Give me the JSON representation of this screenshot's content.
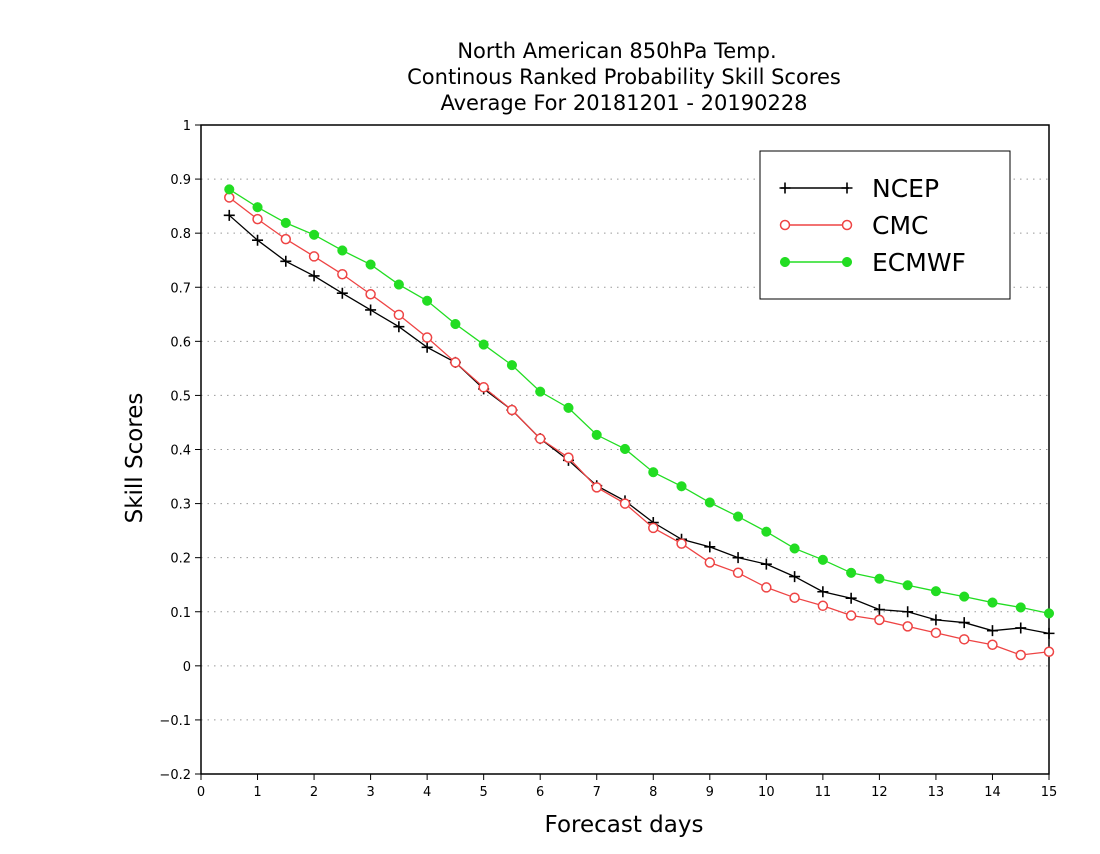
{
  "chart_data": {
    "type": "line",
    "title_lines": [
      "North American 850hPa Temp.",
      "Continous Ranked Probability Skill Scores",
      "Average For 20181201 - 20190228"
    ],
    "xlabel": "Forecast days",
    "ylabel": "Skill Scores",
    "xlim": [
      0,
      15
    ],
    "ylim": [
      -0.2,
      1
    ],
    "x_ticks": [
      0,
      1,
      2,
      3,
      4,
      5,
      6,
      7,
      8,
      9,
      10,
      11,
      12,
      13,
      14,
      15
    ],
    "x_tick_labels": [
      "0",
      "1",
      "2",
      "3",
      "4",
      "5",
      "6",
      "7",
      "8",
      "9",
      "10",
      "11",
      "12",
      "13",
      "14",
      "15"
    ],
    "y_ticks": [
      -0.2,
      -0.1,
      0,
      0.1,
      0.2,
      0.3,
      0.4,
      0.5,
      0.6,
      0.7,
      0.8,
      0.9,
      1
    ],
    "y_tick_labels": [
      "−0.2",
      "−0.1",
      "0",
      "0.1",
      "0.2",
      "0.3",
      "0.4",
      "0.5",
      "0.6",
      "0.7",
      "0.8",
      "0.9",
      "1"
    ],
    "grid": "horizontal-dotted",
    "legend_position": "top-right",
    "x": [
      0.5,
      1,
      1.5,
      2,
      2.5,
      3,
      3.5,
      4,
      4.5,
      5,
      5.5,
      6,
      6.5,
      7,
      7.5,
      8,
      8.5,
      9,
      9.5,
      10,
      10.5,
      11,
      11.5,
      12,
      12.5,
      13,
      13.5,
      14,
      14.5,
      15
    ],
    "series": [
      {
        "name": "NCEP",
        "color": "#000000",
        "marker": "plus",
        "values": [
          0.833,
          0.787,
          0.748,
          0.721,
          0.689,
          0.658,
          0.627,
          0.589,
          0.561,
          0.512,
          0.473,
          0.42,
          0.38,
          0.333,
          0.305,
          0.265,
          0.234,
          0.22,
          0.2,
          0.188,
          0.165,
          0.137,
          0.125,
          0.104,
          0.1,
          0.085,
          0.08,
          0.065,
          0.07,
          0.06
        ]
      },
      {
        "name": "CMC",
        "color": "#ee4444",
        "marker": "open-circle",
        "values": [
          0.866,
          0.826,
          0.789,
          0.757,
          0.724,
          0.687,
          0.649,
          0.607,
          0.561,
          0.515,
          0.473,
          0.42,
          0.385,
          0.33,
          0.3,
          0.255,
          0.226,
          0.191,
          0.172,
          0.145,
          0.126,
          0.111,
          0.093,
          0.085,
          0.073,
          0.061,
          0.049,
          0.039,
          0.02,
          0.026
        ]
      },
      {
        "name": "ECMWF",
        "color": "#22dd22",
        "marker": "filled-circle",
        "values": [
          0.881,
          0.848,
          0.819,
          0.797,
          0.768,
          0.742,
          0.705,
          0.675,
          0.632,
          0.594,
          0.556,
          0.507,
          0.477,
          0.427,
          0.401,
          0.358,
          0.332,
          0.302,
          0.276,
          0.248,
          0.217,
          0.196,
          0.172,
          0.161,
          0.149,
          0.138,
          0.128,
          0.117,
          0.108,
          0.097
        ]
      }
    ]
  }
}
